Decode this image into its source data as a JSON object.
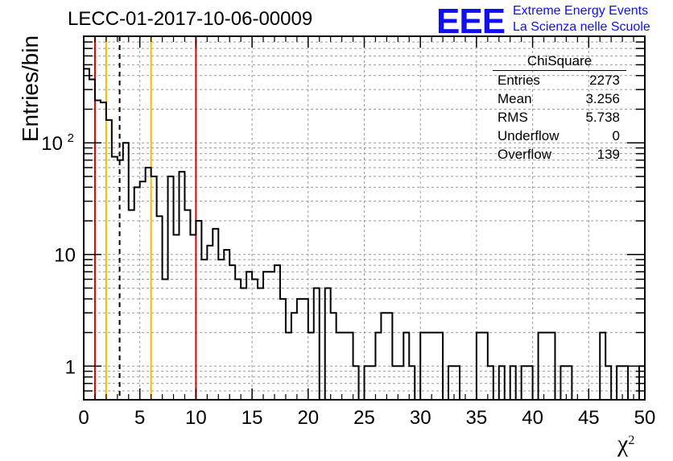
{
  "title": "LECC-01-2017-10-06-00009",
  "logo": {
    "text": "EEE",
    "line1": "Extreme Energy Events",
    "line2": "La Scienza nelle Scuole",
    "color": "#1010ee"
  },
  "axes": {
    "xlabel": "χ",
    "xlabel_sup": "2",
    "ylabel": "Entries/bin"
  },
  "stats": {
    "title": "ChiSquare",
    "rows": [
      {
        "label": "Entries",
        "value": "2273"
      },
      {
        "label": "Mean",
        "value": "3.256"
      },
      {
        "label": "RMS",
        "value": "5.738"
      },
      {
        "label": "Underflow",
        "value": "0"
      },
      {
        "label": "Overflow",
        "value": "139"
      }
    ]
  },
  "chart_data": {
    "type": "histogram",
    "bin_width": 0.5,
    "xlim": [
      0,
      50
    ],
    "ylim": [
      0.5,
      900
    ],
    "yscale": "log",
    "grid": true,
    "xticks": [
      0,
      5,
      10,
      15,
      20,
      25,
      30,
      35,
      40,
      45,
      50
    ],
    "yticks": [
      {
        "value": 1,
        "label": "1"
      },
      {
        "value": 10,
        "label": "10"
      },
      {
        "value": 100,
        "label": "10",
        "sup": "2"
      }
    ],
    "values": [
      460,
      370,
      240,
      230,
      160,
      75,
      70,
      100,
      25,
      40,
      45,
      60,
      50,
      22,
      6,
      50,
      15,
      55,
      25,
      15,
      20,
      9,
      12,
      17,
      9,
      11,
      8,
      6,
      5,
      7,
      6,
      5,
      7,
      7,
      8,
      4,
      2,
      3,
      4,
      4,
      2,
      5,
      0.5,
      5,
      3,
      2,
      2,
      2,
      1,
      0,
      1,
      1,
      2,
      3,
      3,
      1,
      1,
      2,
      1,
      0.5,
      2,
      2,
      2,
      2,
      0,
      1,
      1,
      0,
      0,
      0,
      2,
      2,
      1,
      0,
      1,
      0,
      1,
      0,
      1,
      1,
      0,
      2,
      2,
      2,
      0,
      1,
      1,
      0,
      0,
      0,
      0,
      0,
      2,
      1,
      0,
      1,
      1,
      0,
      0,
      1
    ],
    "vertical_lines": [
      {
        "x": 1.0,
        "color": "#e00000",
        "style": "solid"
      },
      {
        "x": 2.0,
        "color": "#f0c000",
        "style": "solid"
      },
      {
        "x": 3.2,
        "color": "#000000",
        "style": "dashed"
      },
      {
        "x": 6.0,
        "color": "#f0c000",
        "style": "solid"
      },
      {
        "x": 10.0,
        "color": "#e00000",
        "style": "solid"
      }
    ]
  }
}
